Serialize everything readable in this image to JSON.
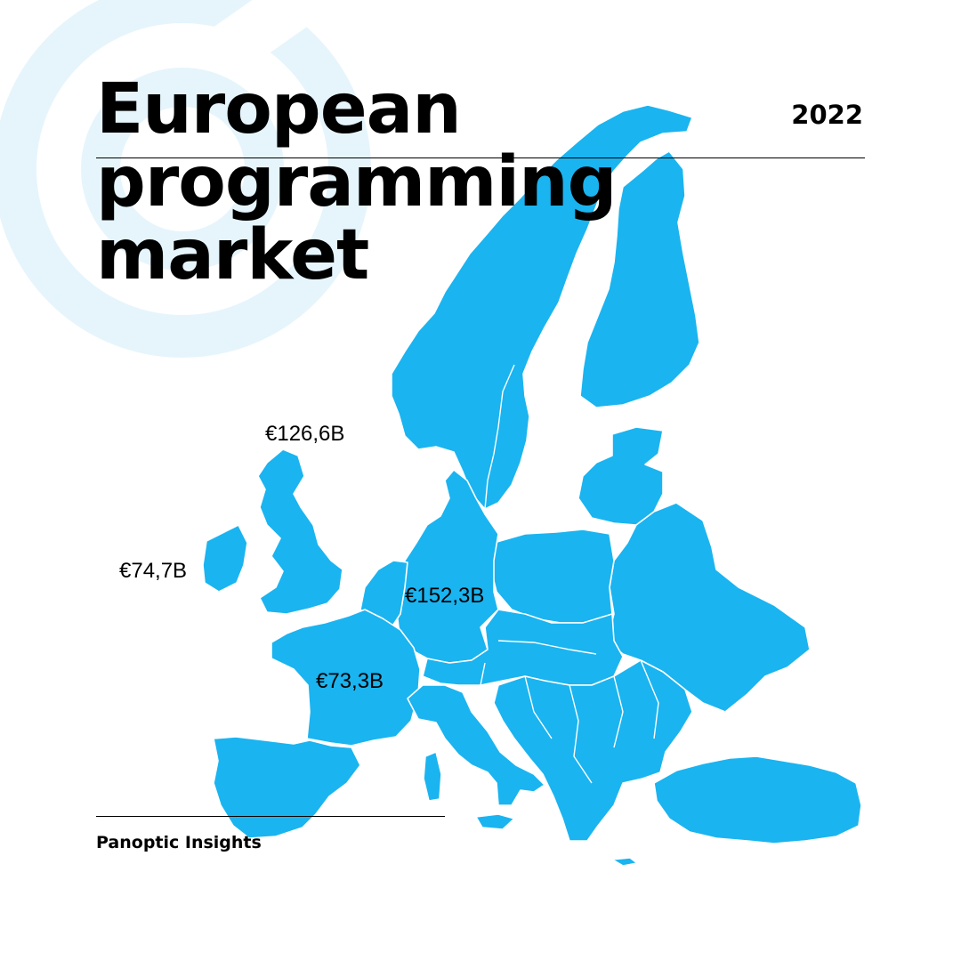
{
  "title_lines": [
    "European",
    "programming",
    "market"
  ],
  "year": "2022",
  "brand": "Panoptic Insights",
  "colors": {
    "map_fill": "#1ab4f0",
    "border": "#ffffff",
    "deco": "#e6f5fc",
    "text": "#000000"
  },
  "map_labels": {
    "uk": "€126,6B",
    "ireland": "€74,7B",
    "germany": "€152,3B",
    "france": "€73,3B"
  }
}
